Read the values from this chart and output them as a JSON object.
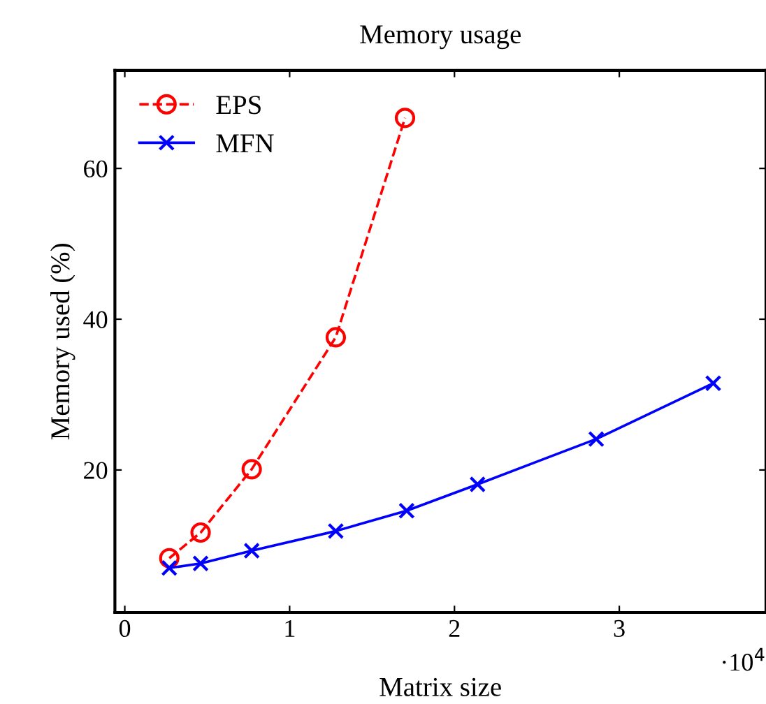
{
  "chart_data": {
    "type": "line",
    "title": "Memory usage",
    "xlabel": "Matrix size",
    "ylabel": "Memory used (%)",
    "annotations": [
      "·10$^{4}$"
    ],
    "xlim": [
      -0.06,
      3.89
    ],
    "ylim": [
      1.1,
      73
    ],
    "xticks": [
      0,
      1,
      2,
      3
    ],
    "yticks": [
      20,
      40,
      60
    ],
    "grid": false,
    "legend": "top left",
    "series": [
      {
        "name": "EPS",
        "color": "#ff0000",
        "marker": "circle",
        "line_style": "dashed",
        "x": [
          0.27,
          0.46,
          0.77,
          1.28,
          1.7
        ],
        "values": [
          8.3,
          11.7,
          20.1,
          37.6,
          66.7
        ]
      },
      {
        "name": "MFN",
        "color": "#0000ff",
        "marker": "cross",
        "line_style": "solid",
        "x": [
          0.27,
          0.46,
          0.77,
          1.28,
          1.71,
          2.14,
          2.86,
          3.57
        ],
        "values": [
          7.0,
          7.6,
          9.3,
          11.9,
          14.6,
          18.1,
          24.1,
          31.5
        ]
      }
    ]
  }
}
